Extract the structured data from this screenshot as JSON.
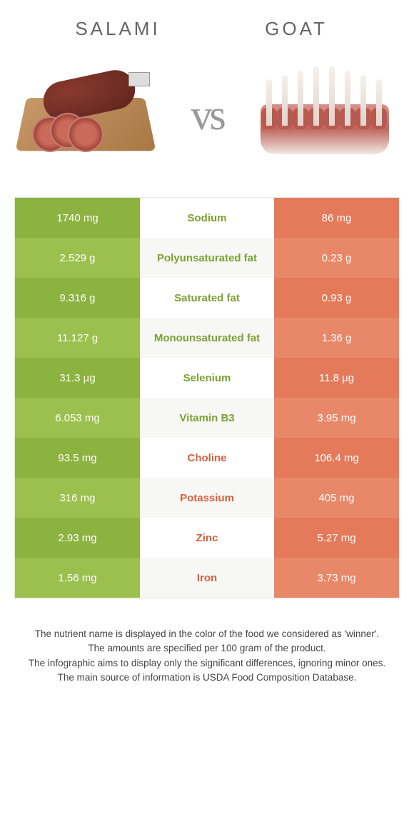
{
  "colors": {
    "left_main": "#8cb23f",
    "left_alt": "#9bc04e",
    "right_main": "#e57a5a",
    "right_alt": "#e88868",
    "mid_bg_a": "#ffffff",
    "mid_bg_b": "#f7f7f5",
    "text_light": "#ffffff",
    "text_left": "#7da033",
    "text_right": "#d4613e",
    "border": "#e8e8e8"
  },
  "header": {
    "left": "SALAMI",
    "right": "GOAT",
    "vs": "vs"
  },
  "rows": [
    {
      "left": "1740 mg",
      "label": "Sodium",
      "right": "86 mg",
      "winner": "left"
    },
    {
      "left": "2.529 g",
      "label": "Polyunsaturated fat",
      "right": "0.23 g",
      "winner": "left"
    },
    {
      "left": "9.316 g",
      "label": "Saturated fat",
      "right": "0.93 g",
      "winner": "left"
    },
    {
      "left": "11.127 g",
      "label": "Monounsaturated fat",
      "right": "1.36 g",
      "winner": "left"
    },
    {
      "left": "31.3 µg",
      "label": "Selenium",
      "right": "11.8 µg",
      "winner": "left"
    },
    {
      "left": "6.053 mg",
      "label": "Vitamin B3",
      "right": "3.95 mg",
      "winner": "left"
    },
    {
      "left": "93.5 mg",
      "label": "Choline",
      "right": "106.4 mg",
      "winner": "right"
    },
    {
      "left": "316 mg",
      "label": "Potassium",
      "right": "405 mg",
      "winner": "right"
    },
    {
      "left": "2.93 mg",
      "label": "Zinc",
      "right": "5.27 mg",
      "winner": "right"
    },
    {
      "left": "1.56 mg",
      "label": "Iron",
      "right": "3.73 mg",
      "winner": "right"
    }
  ],
  "footer": {
    "l1": "The nutrient name is displayed in the color of the food we considered as 'winner'.",
    "l2": "The amounts are specified per 100 gram of the product.",
    "l3": "The infographic aims to display only the significant differences, ignoring minor ones.",
    "l4": "The main source of information is USDA Food Composition Database."
  }
}
